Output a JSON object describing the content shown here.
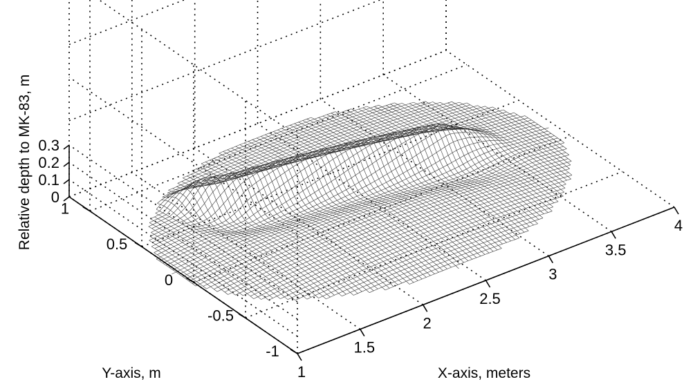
{
  "chart_data": {
    "type": "surface",
    "title": "",
    "xlabel": "X-axis, meters",
    "ylabel": "Y-axis, m",
    "zlabel": "Relative depth to MK-83, m",
    "xlim": [
      1,
      4
    ],
    "ylim": [
      -1,
      1.2
    ],
    "zlim": [
      0,
      0.3
    ],
    "x_ticks": [
      "1",
      "1.5",
      "2",
      "2.5",
      "3",
      "3.5",
      "4"
    ],
    "y_ticks": [
      "-1",
      "-0.5",
      "0",
      "0.5",
      "1"
    ],
    "z_ticks": [
      "0",
      "0.1",
      "0.2",
      "0.3"
    ],
    "grid": true,
    "colormap": "grayscale mesh",
    "surface": {
      "crater_center": [
        2.45,
        0.15
      ],
      "crater_radius_x": 1.5,
      "crater_radius_y": 0.95,
      "ridge_height": 0.28,
      "ridge_path": [
        [
          1.35,
          0.75
        ],
        [
          1.8,
          0.55
        ],
        [
          2.3,
          0.45
        ],
        [
          2.8,
          0.35
        ],
        [
          3.3,
          0.25
        ],
        [
          3.6,
          0.2
        ]
      ]
    }
  }
}
